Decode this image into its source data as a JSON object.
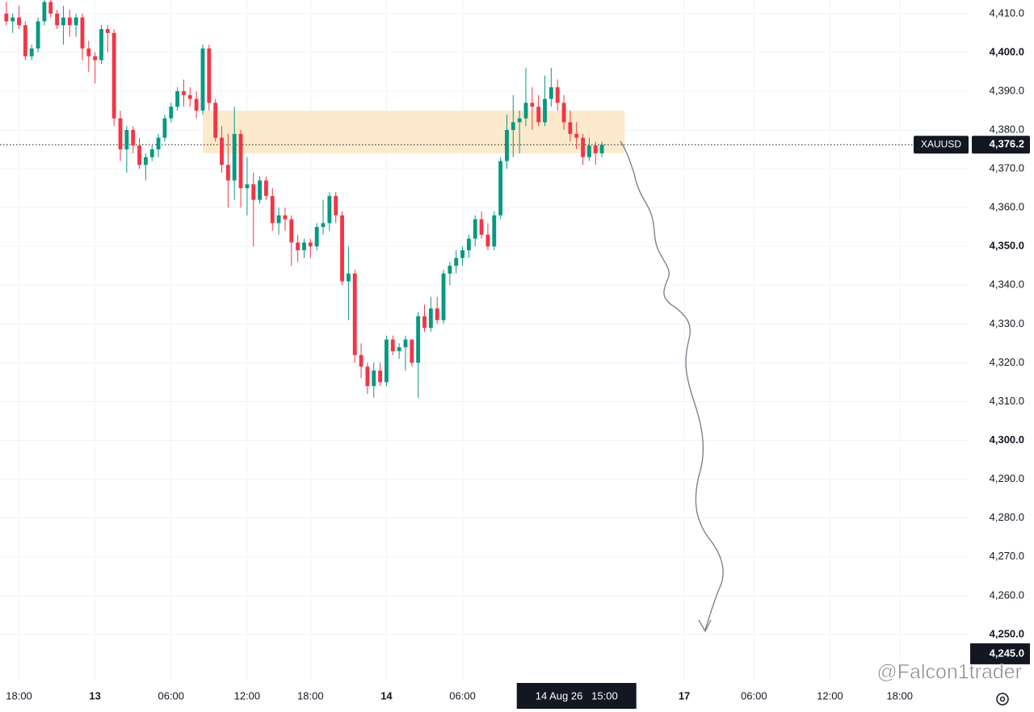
{
  "chart_data": {
    "type": "candlestick",
    "symbol": "XAUUSD",
    "watermark": "@Falcon1trader",
    "up_color": "#089981",
    "down_color": "#f23645",
    "grid": true,
    "x": [
      0,
      1,
      2,
      3,
      4,
      5,
      6,
      7,
      8,
      9,
      10,
      11,
      12,
      13,
      14,
      15,
      16,
      17,
      18,
      19,
      20,
      21,
      22,
      23,
      24,
      25,
      26,
      27,
      28,
      29,
      30,
      31,
      32,
      33,
      34,
      35,
      36,
      37,
      38,
      39,
      40,
      41,
      42,
      43,
      44,
      45,
      46,
      47,
      48,
      49,
      50,
      51,
      52,
      53,
      54,
      55,
      56,
      57,
      58,
      59,
      60,
      61,
      62,
      63,
      64,
      65,
      66,
      67,
      68,
      69,
      70,
      71,
      72,
      73,
      74,
      75,
      76,
      77,
      78,
      79,
      80,
      81,
      82,
      83,
      84,
      85,
      86,
      87,
      88,
      89,
      90,
      91,
      92,
      93,
      94
    ],
    "open": [
      4410,
      4408,
      4409,
      4407,
      4399,
      4401,
      4408,
      4413,
      4410,
      4407,
      4409,
      4407,
      4409,
      4401,
      4399,
      4398,
      4406,
      4405,
      4383,
      4375,
      4380,
      4376,
      4371,
      4373,
      4375,
      4378,
      4383,
      4386,
      4390,
      4389,
      4388,
      4385,
      4401,
      4387,
      4378,
      4371,
      4367,
      4379,
      4365,
      4366,
      4362,
      4367,
      4363,
      4356,
      4358,
      4357,
      4351,
      4349,
      4351,
      4350,
      4355,
      4356,
      4363,
      4358,
      4341,
      4343,
      4322,
      4319,
      4314,
      4318,
      4315,
      4326,
      4323,
      4324,
      4326,
      4320,
      4332,
      4329,
      4334,
      4331,
      4343,
      4345,
      4347,
      4349,
      4352,
      4357,
      4353,
      4350,
      4358,
      4372,
      4380,
      4382,
      4383,
      4387,
      4386,
      4382,
      4388,
      4391,
      4387,
      4382,
      4379,
      4378,
      4373,
      4376,
      4374
    ],
    "high": [
      4413,
      4410,
      4412,
      4408,
      4402,
      4409,
      4414,
      4414,
      4411,
      4412,
      4411,
      4410,
      4410,
      4403,
      4400,
      4407,
      4407,
      4406,
      4385,
      4381,
      4381,
      4378,
      4374,
      4376,
      4379,
      4384,
      4387,
      4391,
      4393,
      4391,
      4390,
      4402,
      4402,
      4388,
      4381,
      4379,
      4386,
      4380,
      4373,
      4369,
      4368,
      4368,
      4365,
      4360,
      4360,
      4358,
      4353,
      4352,
      4352,
      4356,
      4362,
      4364,
      4364,
      4359,
      4350,
      4344,
      4325,
      4320,
      4320,
      4320,
      4327,
      4327,
      4325,
      4327,
      4326,
      4333,
      4335,
      4337,
      4337,
      4344,
      4346,
      4349,
      4350,
      4353,
      4358,
      4359,
      4356,
      4359,
      4373,
      4384,
      4389,
      4385,
      4396,
      4391,
      4389,
      4394,
      4396,
      4393,
      4389,
      4385,
      4382,
      4379,
      4378,
      4377,
      4377
    ],
    "low": [
      4407,
      4405,
      4406,
      4398,
      4398,
      4400,
      4407,
      4409,
      4406,
      4402,
      4404,
      4404,
      4398,
      4395,
      4392,
      4397,
      4400,
      4381,
      4372,
      4369,
      4374,
      4370,
      4367,
      4372,
      4373,
      4377,
      4382,
      4385,
      4386,
      4386,
      4383,
      4384,
      4385,
      4377,
      4369,
      4360,
      4362,
      4360,
      4358,
      4350,
      4361,
      4362,
      4354,
      4353,
      4354,
      4345,
      4346,
      4347,
      4347,
      4349,
      4353,
      4354,
      4356,
      4340,
      4331,
      4320,
      4316,
      4312,
      4311,
      4314,
      4314,
      4322,
      4321,
      4318,
      4319,
      4311,
      4328,
      4328,
      4330,
      4330,
      4340,
      4343,
      4345,
      4347,
      4350,
      4352,
      4349,
      4349,
      4357,
      4370,
      4373,
      4374,
      4381,
      4380,
      4381,
      4381,
      4386,
      4385,
      4380,
      4377,
      4375,
      4371,
      4372,
      4371,
      4373
    ],
    "close": [
      4408,
      4409,
      4407,
      4399,
      4401,
      4408,
      4413,
      4410,
      4407,
      4409,
      4407,
      4409,
      4401,
      4399,
      4398,
      4406,
      4405,
      4383,
      4375,
      4380,
      4376,
      4371,
      4373,
      4375,
      4378,
      4383,
      4386,
      4390,
      4389,
      4388,
      4385,
      4401,
      4387,
      4378,
      4371,
      4367,
      4379,
      4365,
      4366,
      4362,
      4367,
      4363,
      4356,
      4358,
      4357,
      4351,
      4349,
      4351,
      4350,
      4355,
      4356,
      4363,
      4358,
      4341,
      4343,
      4322,
      4319,
      4314,
      4318,
      4315,
      4326,
      4323,
      4324,
      4326,
      4320,
      4332,
      4329,
      4334,
      4331,
      4343,
      4345,
      4347,
      4349,
      4352,
      4357,
      4353,
      4350,
      4358,
      4372,
      4380,
      4382,
      4383,
      4387,
      4386,
      4382,
      4388,
      4391,
      4387,
      4382,
      4379,
      4378,
      4373,
      4376,
      4374,
      4376.2
    ],
    "xlim": [
      -1,
      152
    ],
    "xticks": [
      {
        "value": 2,
        "label": "18:00"
      },
      {
        "value": 14,
        "label": "13"
      },
      {
        "value": 26,
        "label": "06:00"
      },
      {
        "value": 38,
        "label": "12:00"
      },
      {
        "value": 48,
        "label": "18:00"
      },
      {
        "value": 60,
        "label": "14"
      },
      {
        "value": 72,
        "label": "06:00"
      },
      {
        "value": 107,
        "label": "17"
      },
      {
        "value": 118,
        "label": "06:00"
      },
      {
        "value": 130,
        "label": "12:00"
      },
      {
        "value": 141,
        "label": "18:00"
      }
    ],
    "crosshair_x": {
      "value": 90,
      "label": "14 Aug 26   15:00"
    },
    "ylim": [
      4237.7,
      4413.5
    ],
    "yticks": [
      {
        "value": 4250,
        "label": "4,250.0"
      },
      {
        "value": 4260,
        "label": "4,260.0"
      },
      {
        "value": 4270,
        "label": "4,270.0"
      },
      {
        "value": 4280,
        "label": "4,280.0"
      },
      {
        "value": 4290,
        "label": "4,290.0"
      },
      {
        "value": 4300,
        "label": "4,300.0"
      },
      {
        "value": 4310,
        "label": "4,310.0"
      },
      {
        "value": 4320,
        "label": "4,320.0"
      },
      {
        "value": 4330,
        "label": "4,330.0"
      },
      {
        "value": 4340,
        "label": "4,340.0"
      },
      {
        "value": 4350,
        "label": "4,350.0"
      },
      {
        "value": 4360,
        "label": "4,360.0"
      },
      {
        "value": 4370,
        "label": "4,370.0"
      },
      {
        "value": 4380,
        "label": "4,380.0"
      },
      {
        "value": 4390,
        "label": "4,390.0"
      },
      {
        "value": 4400,
        "label": "4,400.0"
      },
      {
        "value": 4410,
        "label": "4,410.0"
      }
    ],
    "last_price": {
      "value": 4376.2,
      "label": "4,376.2"
    },
    "crosshair_y": {
      "value": 4245,
      "label": "4,245.0"
    },
    "zone": {
      "x": [
        31,
        97.6
      ],
      "y": [
        4374,
        4385
      ],
      "color": "#fde6c4"
    }
  }
}
